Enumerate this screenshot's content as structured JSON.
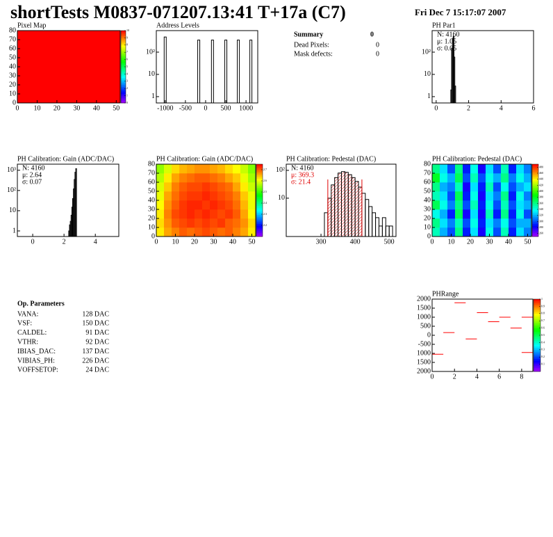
{
  "header": {
    "title": "shortTests M0837-071207.13:41 T+17a (C7)",
    "date": "Fri Dec  7 15:17:07 2007"
  },
  "summary": {
    "title": "Summary",
    "value": 0,
    "rows": [
      [
        "Dead Pixels:",
        0
      ],
      [
        "Mask defects:",
        0
      ]
    ]
  },
  "parameters": {
    "title": "Op. Parameters",
    "rows": [
      [
        "VANA:",
        "128 DAC"
      ],
      [
        "VSF:",
        "150 DAC"
      ],
      [
        "CALDEL:",
        "91 DAC"
      ],
      [
        "VTHR:",
        "92 DAC"
      ],
      [
        "IBIAS_DAC:",
        "137 DAC"
      ],
      [
        "VIBIAS_PH:",
        "226 DAC"
      ],
      [
        "VOFFSETOP:",
        "24 DAC"
      ]
    ]
  },
  "chart_data": [
    {
      "type": "heatmap",
      "title": "Pixel Map",
      "xbins": [
        0,
        52
      ],
      "ybins": [
        0,
        80
      ],
      "z": [
        [
          10
        ]
      ],
      "xlim": [
        0,
        52
      ],
      "ylim": [
        0,
        80
      ],
      "xticks": [
        0,
        10,
        20,
        30,
        40,
        50
      ],
      "yticks": [
        0,
        10,
        20,
        30,
        40,
        50,
        60,
        70,
        80
      ],
      "zlim": [
        0,
        10
      ],
      "zticks": [
        0,
        1,
        2,
        3,
        4,
        5,
        6,
        7,
        8,
        9,
        10
      ]
    },
    {
      "type": "spikes",
      "title": "Address Levels",
      "log_y": true,
      "color": "#000000",
      "x": [
        -1000,
        -170,
        170,
        500,
        810,
        1120
      ],
      "values": [
        480,
        350,
        350,
        350,
        350,
        350
      ],
      "xlim": [
        -1220,
        1290
      ],
      "ylim": [
        0.52,
        930
      ],
      "xticks": [
        -1000,
        -500,
        0,
        500,
        1000
      ],
      "yticks": [
        1,
        10,
        {
          "value": 100,
          "label": "10²"
        }
      ]
    },
    {
      "type": "histogram",
      "title": "PH Par1",
      "log_y": true,
      "color": "#000000",
      "bins": [
        0.9,
        0.95,
        1.0,
        1.05,
        1.1,
        1.15,
        1.2
      ],
      "values": [
        2,
        150,
        420,
        520,
        60,
        3
      ],
      "xlim": [
        -0.25,
        6
      ],
      "ylim": [
        0.52,
        930
      ],
      "xticks": [
        0,
        2,
        4,
        6
      ],
      "yticks": [
        1,
        10,
        {
          "value": 100,
          "label": "10²"
        }
      ],
      "stats": [
        {
          "text": "N: 4160",
          "color": "#000000"
        },
        {
          "text": "μ: 1.05",
          "color": "#000000"
        },
        {
          "text": "σ: 0.05",
          "color": "#000000"
        }
      ]
    },
    {
      "type": "histogram",
      "title": "PH Calibration: Gain (ADC/DAC)",
      "log_y": true,
      "color": "#000000",
      "bins": [
        2.3,
        2.35,
        2.4,
        2.45,
        2.5,
        2.55,
        2.6,
        2.65,
        2.7,
        2.75,
        2.8
      ],
      "values": [
        1,
        2,
        3,
        6,
        15,
        40,
        120,
        350,
        800,
        1200
      ],
      "xlim": [
        -0.98,
        5.5
      ],
      "ylim": [
        0.53,
        2000
      ],
      "xticks": [
        0,
        2,
        4
      ],
      "yticks": [
        1,
        10,
        {
          "value": 100,
          "label": "10²"
        },
        {
          "value": 1000,
          "label": "10³"
        }
      ],
      "stats": [
        {
          "text": "N: 4160",
          "color": "#000000"
        },
        {
          "text": "μ: 2.64",
          "color": "#000000"
        },
        {
          "text": "σ: 0.07",
          "color": "#000000"
        }
      ]
    },
    {
      "type": "heatmap",
      "title": "PH Calibration: Gain (ADC/DAC)",
      "xbins": [
        0,
        4,
        8,
        12,
        16,
        20,
        24,
        28,
        32,
        36,
        40,
        44,
        48,
        52
      ],
      "ybins": [
        0,
        10,
        20,
        30,
        40,
        50,
        60,
        70,
        80
      ],
      "z": [
        [
          2.62,
          2.66,
          2.68,
          2.7,
          2.69,
          2.7,
          2.71,
          2.7,
          2.69,
          2.7,
          2.68,
          2.66,
          2.62
        ],
        [
          2.63,
          2.67,
          2.7,
          2.71,
          2.72,
          2.71,
          2.72,
          2.71,
          2.72,
          2.7,
          2.69,
          2.67,
          2.63
        ],
        [
          2.62,
          2.68,
          2.71,
          2.72,
          2.73,
          2.72,
          2.73,
          2.72,
          2.71,
          2.72,
          2.7,
          2.66,
          2.61
        ],
        [
          2.61,
          2.67,
          2.7,
          2.72,
          2.73,
          2.73,
          2.72,
          2.73,
          2.72,
          2.71,
          2.69,
          2.65,
          2.6
        ],
        [
          2.6,
          2.66,
          2.69,
          2.71,
          2.72,
          2.72,
          2.73,
          2.72,
          2.71,
          2.7,
          2.68,
          2.64,
          2.6
        ],
        [
          2.59,
          2.64,
          2.68,
          2.7,
          2.71,
          2.71,
          2.72,
          2.71,
          2.7,
          2.69,
          2.66,
          2.62,
          2.58
        ],
        [
          2.57,
          2.62,
          2.66,
          2.68,
          2.69,
          2.7,
          2.7,
          2.69,
          2.68,
          2.66,
          2.64,
          2.6,
          2.56
        ],
        [
          2.55,
          2.59,
          2.63,
          2.65,
          2.66,
          2.67,
          2.67,
          2.66,
          2.65,
          2.63,
          2.61,
          2.58,
          2.54
        ]
      ],
      "xlim": [
        0,
        52
      ],
      "ylim": [
        0,
        80
      ],
      "xticks": [
        0,
        10,
        20,
        30,
        40,
        50
      ],
      "yticks": [
        0,
        10,
        20,
        30,
        40,
        50,
        60,
        70,
        80
      ],
      "zlim": [
        2.1,
        2.75
      ],
      "zticks": [
        2.2,
        2.3,
        2.4,
        2.5,
        2.6,
        2.7
      ]
    },
    {
      "type": "histogram",
      "title": "PH Calibration: Pedestal (DAC)",
      "log_y": true,
      "color": "#000000",
      "marker_color": "#e00000",
      "bins": [
        310,
        320,
        330,
        340,
        350,
        360,
        370,
        380,
        390,
        400,
        410,
        420,
        430,
        440,
        450,
        460,
        470,
        480,
        490,
        500,
        510
      ],
      "values": [
        3,
        10,
        30,
        55,
        80,
        90,
        85,
        70,
        55,
        40,
        25,
        15,
        9,
        5,
        3,
        2,
        1,
        2,
        1,
        1
      ],
      "markers": [
        320,
        420
      ],
      "xlim": [
        198,
        520
      ],
      "ylim": [
        0.42,
        167
      ],
      "xticks": [
        300,
        400,
        500
      ],
      "yticks": [
        10,
        {
          "value": 100,
          "label": "10²"
        }
      ],
      "stats": [
        {
          "text": "N: 4160",
          "color": "#000000"
        },
        {
          "text": "μ: 369.3",
          "color": "#e00000"
        },
        {
          "text": "σ: 21.4",
          "color": "#e00000"
        }
      ]
    },
    {
      "type": "heatmap",
      "title": "PH Calibration: Pedestal (DAC)",
      "xbins": [
        0,
        4,
        8,
        12,
        16,
        20,
        24,
        28,
        32,
        36,
        40,
        44,
        48,
        52
      ],
      "ybins": [
        0,
        10,
        20,
        30,
        40,
        50,
        60,
        70,
        80
      ],
      "z": [
        [
          350,
          320,
          300,
          360,
          290,
          330,
          280,
          340,
          300,
          350,
          290,
          330,
          310
        ],
        [
          360,
          330,
          310,
          350,
          300,
          340,
          290,
          330,
          310,
          340,
          300,
          320,
          320
        ],
        [
          340,
          320,
          290,
          370,
          280,
          330,
          280,
          350,
          290,
          360,
          290,
          340,
          300
        ],
        [
          370,
          340,
          310,
          360,
          300,
          350,
          290,
          340,
          300,
          350,
          300,
          330,
          320
        ],
        [
          350,
          330,
          300,
          370,
          290,
          340,
          280,
          330,
          310,
          360,
          290,
          340,
          310
        ],
        [
          360,
          320,
          310,
          350,
          280,
          330,
          290,
          350,
          300,
          340,
          300,
          320,
          330
        ],
        [
          380,
          340,
          320,
          370,
          300,
          350,
          300,
          340,
          320,
          360,
          310,
          340,
          320
        ],
        [
          360,
          330,
          300,
          360,
          290,
          340,
          280,
          330,
          300,
          350,
          290,
          330,
          310
        ]
      ],
      "xlim": [
        0,
        52
      ],
      "ylim": [
        0,
        80
      ],
      "xticks": [
        0,
        10,
        20,
        30,
        40,
        50
      ],
      "yticks": [
        0,
        10,
        20,
        30,
        40,
        50,
        60,
        70,
        80
      ],
      "zlim": [
        250,
        490
      ],
      "zticks": [
        260,
        280,
        300,
        320,
        340,
        360,
        380,
        400,
        420,
        440,
        460,
        480
      ]
    },
    {
      "type": "segments",
      "title": "PHRange",
      "color": "#ff0000",
      "bins": [
        0,
        1,
        2,
        3,
        4,
        5,
        6,
        7,
        8,
        9
      ],
      "values": [
        [
          -1050
        ],
        [
          150
        ],
        [
          1800
        ],
        [
          -200
        ],
        [
          1250
        ],
        [
          750
        ],
        [
          1000
        ],
        [
          400
        ],
        [
          1000,
          -950
        ]
      ],
      "xlim": [
        0,
        9
      ],
      "ylim": [
        -2000,
        2000
      ],
      "xticks": [
        0,
        2,
        4,
        6,
        8
      ],
      "yticks": [
        2000,
        1500,
        1000,
        500,
        0,
        -500,
        {
          "value": -1000,
          "label": "1000"
        },
        {
          "value": -1500,
          "label": "1500"
        },
        {
          "value": -2000,
          "label": "2000"
        }
      ],
      "zlim": [
        0,
        1
      ],
      "zticks": [
        0.1,
        0.2,
        0.3,
        0.4,
        0.5,
        0.6,
        0.7,
        0.8,
        0.9,
        1
      ]
    }
  ]
}
